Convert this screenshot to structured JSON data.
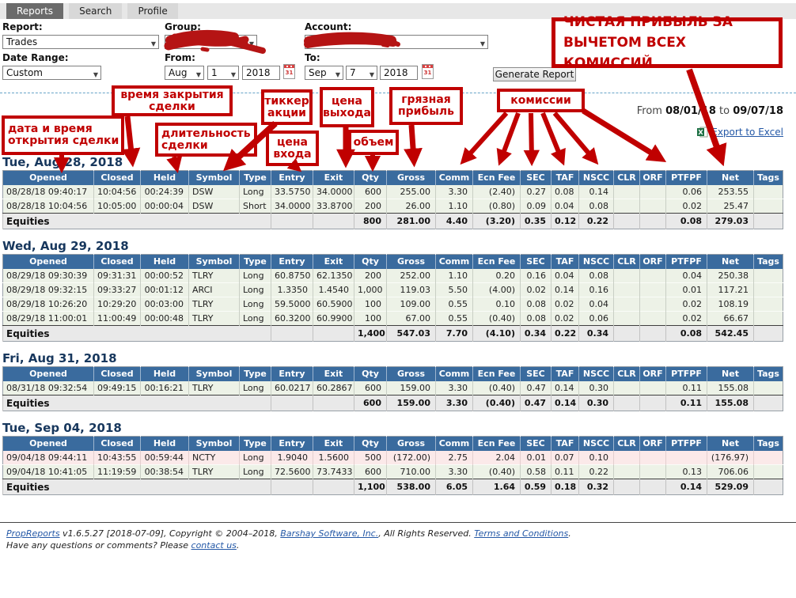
{
  "tabs": [
    {
      "label": "Reports",
      "active": true
    },
    {
      "label": "Search",
      "active": false
    },
    {
      "label": "Profile",
      "active": false
    }
  ],
  "filters": {
    "report_label": "Report:",
    "report_value": "Trades",
    "group_label": "Group:",
    "group_value": "",
    "account_label": "Account:",
    "account_value": "",
    "date_range_label": "Date Range:",
    "date_range_value": "Custom",
    "from_label": "From:",
    "from_month": "Aug",
    "from_day": "1",
    "from_year": "2018",
    "to_label": "To:",
    "to_month": "Sep",
    "to_day": "7",
    "to_year": "2018",
    "calendar_icon_text": "31",
    "generate_label": "Generate Report"
  },
  "period": {
    "from_label": "From",
    "from_date": "08/01/18",
    "to_label": "to",
    "to_date": "09/07/18"
  },
  "export_label": "Export to Excel",
  "annotations": {
    "opened": [
      "дата и время",
      "открытия сделки"
    ],
    "closed": [
      "время закрытия",
      "сделки"
    ],
    "held": [
      "длительность",
      "сделки"
    ],
    "symbol": [
      "тиккер",
      "акции"
    ],
    "entry": [
      "цена",
      "входа"
    ],
    "exit": [
      "цена",
      "выхода"
    ],
    "qty": [
      "объем"
    ],
    "gross": [
      "грязная",
      "прибыль"
    ],
    "comm": [
      "комиссии"
    ],
    "net": [
      "ЧИСТАЯ ПРИБЫЛЬ ЗА",
      "ВЫЧЕТОМ ВСЕХ КОМИССИЙ"
    ]
  },
  "report": {
    "columns": [
      "Opened",
      "Closed",
      "Held",
      "Symbol",
      "Type",
      "Entry",
      "Exit",
      "Qty",
      "Gross",
      "Comm",
      "Ecn Fee",
      "SEC",
      "TAF",
      "NSCC",
      "CLR",
      "ORF",
      "PTFPF",
      "Net",
      "Tags"
    ],
    "totals_label": "Equities",
    "days": [
      {
        "date": "Tue, Aug 28, 2018",
        "rows": [
          {
            "loss": false,
            "cells": [
              "08/28/18 09:40:17",
              "10:04:56",
              "00:24:39",
              "DSW",
              "Long",
              "33.5750",
              "34.0000",
              "600",
              "255.00",
              "3.30",
              "(2.40)",
              "0.27",
              "0.08",
              "0.14",
              "",
              "",
              "0.06",
              "253.55",
              ""
            ]
          },
          {
            "loss": false,
            "cells": [
              "08/28/18 10:04:56",
              "10:05:00",
              "00:00:04",
              "DSW",
              "Short",
              "34.0000",
              "33.8700",
              "200",
              "26.00",
              "1.10",
              "(0.80)",
              "0.09",
              "0.04",
              "0.08",
              "",
              "",
              "0.02",
              "25.47",
              ""
            ]
          }
        ],
        "totals": [
          "800",
          "281.00",
          "4.40",
          "(3.20)",
          "0.35",
          "0.12",
          "0.22",
          "",
          "",
          "0.08",
          "279.03",
          ""
        ]
      },
      {
        "date": "Wed, Aug 29, 2018",
        "rows": [
          {
            "loss": false,
            "cells": [
              "08/29/18 09:30:39",
              "09:31:31",
              "00:00:52",
              "TLRY",
              "Long",
              "60.8750",
              "62.1350",
              "200",
              "252.00",
              "1.10",
              "0.20",
              "0.16",
              "0.04",
              "0.08",
              "",
              "",
              "0.04",
              "250.38",
              ""
            ]
          },
          {
            "loss": false,
            "cells": [
              "08/29/18 09:32:15",
              "09:33:27",
              "00:01:12",
              "ARCI",
              "Long",
              "1.3350",
              "1.4540",
              "1,000",
              "119.03",
              "5.50",
              "(4.00)",
              "0.02",
              "0.14",
              "0.16",
              "",
              "",
              "0.01",
              "117.21",
              ""
            ]
          },
          {
            "loss": false,
            "cells": [
              "08/29/18 10:26:20",
              "10:29:20",
              "00:03:00",
              "TLRY",
              "Long",
              "59.5000",
              "60.5900",
              "100",
              "109.00",
              "0.55",
              "0.10",
              "0.08",
              "0.02",
              "0.04",
              "",
              "",
              "0.02",
              "108.19",
              ""
            ]
          },
          {
            "loss": false,
            "cells": [
              "08/29/18 11:00:01",
              "11:00:49",
              "00:00:48",
              "TLRY",
              "Long",
              "60.3200",
              "60.9900",
              "100",
              "67.00",
              "0.55",
              "(0.40)",
              "0.08",
              "0.02",
              "0.06",
              "",
              "",
              "0.02",
              "66.67",
              ""
            ]
          }
        ],
        "totals": [
          "1,400",
          "547.03",
          "7.70",
          "(4.10)",
          "0.34",
          "0.22",
          "0.34",
          "",
          "",
          "0.08",
          "542.45",
          ""
        ]
      },
      {
        "date": "Fri, Aug 31, 2018",
        "rows": [
          {
            "loss": false,
            "cells": [
              "08/31/18 09:32:54",
              "09:49:15",
              "00:16:21",
              "TLRY",
              "Long",
              "60.0217",
              "60.2867",
              "600",
              "159.00",
              "3.30",
              "(0.40)",
              "0.47",
              "0.14",
              "0.30",
              "",
              "",
              "0.11",
              "155.08",
              ""
            ]
          }
        ],
        "totals": [
          "600",
          "159.00",
          "3.30",
          "(0.40)",
          "0.47",
          "0.14",
          "0.30",
          "",
          "",
          "0.11",
          "155.08",
          ""
        ]
      },
      {
        "date": "Tue, Sep 04, 2018",
        "rows": [
          {
            "loss": true,
            "cells": [
              "09/04/18 09:44:11",
              "10:43:55",
              "00:59:44",
              "NCTY",
              "Long",
              "1.9040",
              "1.5600",
              "500",
              "(172.00)",
              "2.75",
              "2.04",
              "0.01",
              "0.07",
              "0.10",
              "",
              "",
              "",
              "(176.97)",
              ""
            ]
          },
          {
            "loss": false,
            "cells": [
              "09/04/18 10:41:05",
              "11:19:59",
              "00:38:54",
              "TLRY",
              "Long",
              "72.5600",
              "73.7433",
              "600",
              "710.00",
              "3.30",
              "(0.40)",
              "0.58",
              "0.11",
              "0.22",
              "",
              "",
              "0.13",
              "706.06",
              ""
            ]
          }
        ],
        "totals": [
          "1,100",
          "538.00",
          "6.05",
          "1.64",
          "0.59",
          "0.18",
          "0.32",
          "",
          "",
          "0.14",
          "529.09",
          ""
        ]
      }
    ]
  },
  "footer": {
    "brand": "PropReports",
    "mid1": " v1.6.5.27 [2018-07-09], Copyright © 2004–2018, ",
    "company": "Barshay Software, Inc.",
    "mid2": ", All Rights Reserved. ",
    "terms": "Terms and Conditions",
    "dot": ".",
    "q1": "Have any questions or comments? Please ",
    "contact": "contact us",
    "dot2": "."
  },
  "colors": {
    "header_blue": "#3A6B9E",
    "date_navy": "#17375D",
    "row_green": "#EDF2E7",
    "row_loss_pink": "#FBE9E9",
    "totals_gray": "#E9E9E9",
    "annotation_red": "#C00000",
    "link_blue": "#2458A6"
  }
}
